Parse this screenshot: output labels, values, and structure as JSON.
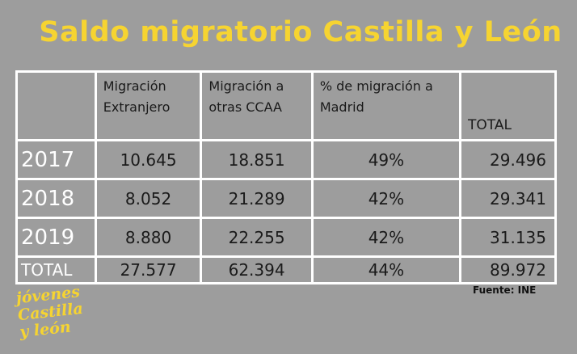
{
  "header": {
    "title": "Saldo migratorio Castilla y León"
  },
  "table": {
    "columns": [
      "",
      "Migración Extranjero",
      "Migración a otras CCAA",
      "% de migración a Madrid",
      "TOTAL"
    ],
    "rows": [
      [
        "2017",
        "10.645",
        "18.851",
        "49%",
        "29.496"
      ],
      [
        "2018",
        "8.052",
        "21.289",
        "42%",
        "29.341"
      ],
      [
        "2019",
        "8.880",
        "22.255",
        "42%",
        "31.135"
      ],
      [
        "TOTAL",
        "27.577",
        "62.394",
        "44%",
        "89.972"
      ]
    ]
  },
  "footer": {
    "source": "Fuente: INE",
    "logo": [
      "jóvenes",
      "Castilla",
      "y león"
    ]
  }
}
